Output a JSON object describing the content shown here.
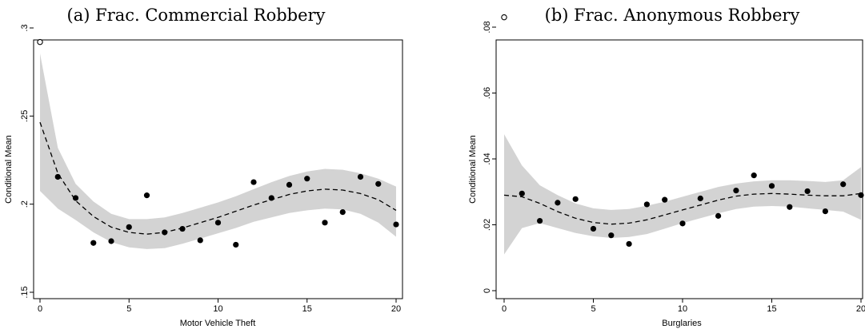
{
  "chart_data": [
    {
      "type": "scatter",
      "title": "(a) Frac. Commercial Robbery",
      "xlabel": "Motor Vehicle Theft",
      "ylabel": "Conditional Mean",
      "xlim": [
        0,
        20
      ],
      "ylim": [
        0.15,
        0.3
      ],
      "xticks": [
        0,
        5,
        10,
        15,
        20
      ],
      "xtick_labels": [
        "0",
        "5",
        "10",
        "15",
        "20"
      ],
      "yticks": [
        0.15,
        0.2,
        0.25,
        0.3
      ],
      "ytick_labels": [
        ".15",
        ".2",
        ".25",
        ".3"
      ],
      "grid": false,
      "hollow_point": {
        "x": 0,
        "y": 0.292
      },
      "points": {
        "x": [
          1,
          2,
          3,
          4,
          5,
          6,
          7,
          8,
          9,
          10,
          11,
          12,
          13,
          14,
          15,
          16,
          17,
          18,
          19,
          20
        ],
        "y": [
          0.2155,
          0.2035,
          0.178,
          0.179,
          0.187,
          0.205,
          0.184,
          0.186,
          0.1795,
          0.1895,
          0.177,
          0.2125,
          0.2035,
          0.211,
          0.2145,
          0.1895,
          0.1955,
          0.2155,
          0.2115,
          0.1885
        ]
      },
      "fit": {
        "x": [
          0,
          1,
          2,
          3,
          4,
          5,
          6,
          7,
          8,
          9,
          10,
          11,
          12,
          13,
          14,
          15,
          16,
          17,
          18,
          19,
          20
        ],
        "y": [
          0.2465,
          0.2175,
          0.202,
          0.193,
          0.187,
          0.184,
          0.183,
          0.184,
          0.1865,
          0.1895,
          0.1925,
          0.196,
          0.1995,
          0.2025,
          0.2055,
          0.2075,
          0.2085,
          0.208,
          0.206,
          0.2025,
          0.1965
        ]
      },
      "band": {
        "upper": [
          0.2855,
          0.232,
          0.2115,
          0.2015,
          0.1945,
          0.1915,
          0.1915,
          0.1925,
          0.195,
          0.198,
          0.201,
          0.2045,
          0.2085,
          0.2125,
          0.216,
          0.2185,
          0.22,
          0.2195,
          0.2175,
          0.2145,
          0.21
        ],
        "lower": [
          0.2075,
          0.1975,
          0.191,
          0.184,
          0.1785,
          0.1755,
          0.1745,
          0.175,
          0.1775,
          0.1805,
          0.1835,
          0.1865,
          0.19,
          0.1925,
          0.195,
          0.1965,
          0.1975,
          0.197,
          0.1945,
          0.1895,
          0.1815
        ]
      }
    },
    {
      "type": "scatter",
      "title": "(b) Frac. Anonymous Robbery",
      "xlabel": "Burglaries",
      "ylabel": "Conditional Mean",
      "xlim": [
        0,
        20
      ],
      "ylim": [
        0,
        0.08
      ],
      "xticks": [
        0,
        5,
        10,
        15,
        20
      ],
      "xtick_labels": [
        "0",
        "5",
        "10",
        "15",
        "20"
      ],
      "yticks": [
        0,
        0.02,
        0.04,
        0.06,
        0.08
      ],
      "ytick_labels": [
        "0",
        ".02",
        ".04",
        ".06",
        ".08"
      ],
      "grid": false,
      "hollow_point": {
        "x": 0,
        "y": 0.083
      },
      "points": {
        "x": [
          1,
          2,
          3,
          4,
          5,
          6,
          7,
          8,
          9,
          10,
          11,
          12,
          13,
          14,
          15,
          16,
          17,
          18,
          19,
          20
        ],
        "y": [
          0.0295,
          0.0212,
          0.0267,
          0.0278,
          0.0188,
          0.0168,
          0.0142,
          0.0262,
          0.0276,
          0.0204,
          0.028,
          0.0227,
          0.0304,
          0.035,
          0.0318,
          0.0254,
          0.0302,
          0.0241,
          0.0323,
          0.029
        ]
      },
      "fit": {
        "x": [
          0,
          1,
          2,
          3,
          4,
          5,
          6,
          7,
          8,
          9,
          10,
          11,
          12,
          13,
          14,
          15,
          16,
          17,
          18,
          19,
          20
        ],
        "y": [
          0.029,
          0.0285,
          0.0265,
          0.024,
          0.022,
          0.0207,
          0.0202,
          0.0205,
          0.0215,
          0.023,
          0.0245,
          0.026,
          0.0275,
          0.0287,
          0.0293,
          0.0295,
          0.0293,
          0.029,
          0.0288,
          0.0288,
          0.0295
        ]
      },
      "band": {
        "upper": [
          0.0475,
          0.038,
          0.032,
          0.029,
          0.0265,
          0.025,
          0.0245,
          0.0248,
          0.0258,
          0.027,
          0.0285,
          0.03,
          0.0315,
          0.0325,
          0.0332,
          0.0335,
          0.0335,
          0.0333,
          0.033,
          0.0335,
          0.0375
        ],
        "lower": [
          0.011,
          0.019,
          0.0205,
          0.019,
          0.0175,
          0.0165,
          0.016,
          0.0163,
          0.0172,
          0.0188,
          0.0205,
          0.022,
          0.0235,
          0.0248,
          0.0255,
          0.0257,
          0.0255,
          0.025,
          0.0245,
          0.024,
          0.0215
        ]
      }
    }
  ]
}
